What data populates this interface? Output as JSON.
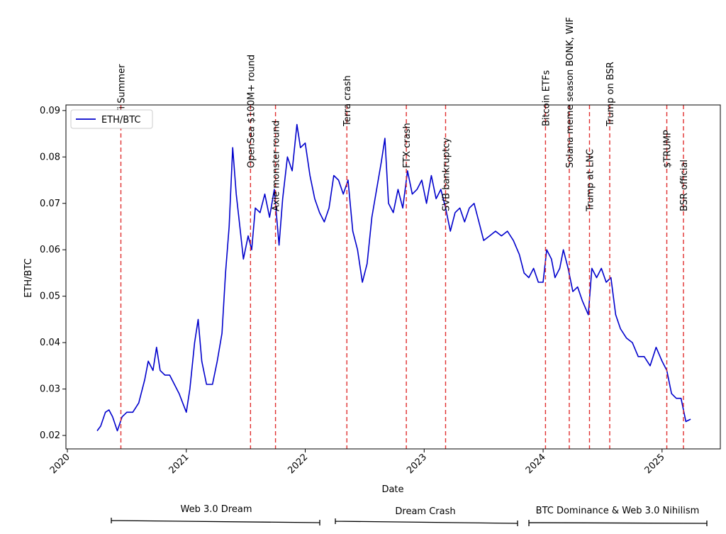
{
  "chart_data": {
    "type": "line",
    "xlabel": "Date",
    "ylabel": "ETH/BTC",
    "xlim": [
      2019.988,
      2025.49
    ],
    "ylim": [
      0.0171,
      0.0912
    ],
    "xticks": [
      2020,
      2021,
      2022,
      2023,
      2024,
      2025
    ],
    "yticks": [
      0.02,
      0.03,
      0.04,
      0.05,
      0.06,
      0.07,
      0.08,
      0.09
    ],
    "legend": "upper left",
    "series": [
      {
        "name": "ETH/BTC",
        "color": "#0000cc",
        "x": [
          2020.25,
          2020.28,
          2020.32,
          2020.35,
          2020.38,
          2020.42,
          2020.46,
          2020.5,
          2020.55,
          2020.6,
          2020.65,
          2020.68,
          2020.72,
          2020.75,
          2020.78,
          2020.82,
          2020.86,
          2020.9,
          2020.94,
          2020.97,
          2021.0,
          2021.03,
          2021.07,
          2021.1,
          2021.13,
          2021.17,
          2021.22,
          2021.26,
          2021.3,
          2021.33,
          2021.36,
          2021.39,
          2021.42,
          2021.45,
          2021.48,
          2021.52,
          2021.55,
          2021.58,
          2021.62,
          2021.66,
          2021.7,
          2021.74,
          2021.78,
          2021.81,
          2021.85,
          2021.89,
          2021.93,
          2021.96,
          2022.0,
          2022.04,
          2022.08,
          2022.12,
          2022.16,
          2022.2,
          2022.24,
          2022.28,
          2022.32,
          2022.36,
          2022.4,
          2022.44,
          2022.48,
          2022.52,
          2022.56,
          2022.6,
          2022.64,
          2022.67,
          2022.7,
          2022.74,
          2022.78,
          2022.82,
          2022.86,
          2022.9,
          2022.94,
          2022.98,
          2023.02,
          2023.06,
          2023.1,
          2023.14,
          2023.18,
          2023.22,
          2023.26,
          2023.3,
          2023.34,
          2023.38,
          2023.42,
          2023.46,
          2023.5,
          2023.55,
          2023.6,
          2023.65,
          2023.7,
          2023.75,
          2023.8,
          2023.84,
          2023.88,
          2023.92,
          2023.96,
          2024.0,
          2024.03,
          2024.07,
          2024.1,
          2024.14,
          2024.17,
          2024.21,
          2024.25,
          2024.29,
          2024.33,
          2024.38,
          2024.41,
          2024.45,
          2024.49,
          2024.53,
          2024.57,
          2024.61,
          2024.65,
          2024.7,
          2024.75,
          2024.8,
          2024.85,
          2024.9,
          2024.95,
          2025.0,
          2025.04,
          2025.08,
          2025.12,
          2025.16,
          2025.2,
          2025.24
        ],
        "values": [
          0.021,
          0.022,
          0.025,
          0.0255,
          0.024,
          0.021,
          0.024,
          0.025,
          0.025,
          0.027,
          0.032,
          0.036,
          0.034,
          0.039,
          0.034,
          0.033,
          0.033,
          0.031,
          0.029,
          0.027,
          0.025,
          0.03,
          0.04,
          0.045,
          0.036,
          0.031,
          0.031,
          0.036,
          0.042,
          0.055,
          0.065,
          0.082,
          0.072,
          0.065,
          0.058,
          0.063,
          0.06,
          0.069,
          0.068,
          0.072,
          0.067,
          0.073,
          0.061,
          0.071,
          0.08,
          0.077,
          0.087,
          0.082,
          0.083,
          0.076,
          0.071,
          0.068,
          0.066,
          0.069,
          0.076,
          0.075,
          0.072,
          0.075,
          0.064,
          0.06,
          0.053,
          0.057,
          0.067,
          0.073,
          0.079,
          0.084,
          0.07,
          0.068,
          0.073,
          0.069,
          0.077,
          0.072,
          0.073,
          0.075,
          0.07,
          0.076,
          0.071,
          0.073,
          0.069,
          0.064,
          0.068,
          0.069,
          0.066,
          0.069,
          0.07,
          0.066,
          0.062,
          0.063,
          0.064,
          0.063,
          0.064,
          0.062,
          0.059,
          0.055,
          0.054,
          0.056,
          0.053,
          0.053,
          0.06,
          0.058,
          0.054,
          0.056,
          0.06,
          0.056,
          0.051,
          0.052,
          0.049,
          0.046,
          0.056,
          0.054,
          0.056,
          0.053,
          0.054,
          0.046,
          0.043,
          0.041,
          0.04,
          0.037,
          0.037,
          0.035,
          0.039,
          0.036,
          0.034,
          0.029,
          0.028,
          0.028,
          0.023,
          0.0235
        ]
      }
    ],
    "events": [
      {
        "label": "DeFi Summer",
        "x": 2020.45
      },
      {
        "label": "OpenSea $100M+ round",
        "x": 2021.54
      },
      {
        "label": "Axie monster round",
        "x": 2021.75
      },
      {
        "label": "Terra crash",
        "x": 2022.35
      },
      {
        "label": "FTX crash",
        "x": 2022.85
      },
      {
        "label": "SVB bankruptcy",
        "x": 2023.18
      },
      {
        "label": "Bitcoin ETFs",
        "x": 2024.02
      },
      {
        "label": "Solana meme season BONK, WIF",
        "x": 2024.22
      },
      {
        "label": "Trump at LNC",
        "x": 2024.39
      },
      {
        "label": "Trump on BSR",
        "x": 2024.56
      },
      {
        "label": "$TRUMP",
        "x": 2025.04
      },
      {
        "label": "BSR official",
        "x": 2025.18
      }
    ],
    "event_color": "#e03030",
    "eras": [
      "Web 3.0 Dream",
      "Dream Crash",
      "BTC Dominance & Web 3.0 Nihilism"
    ]
  }
}
